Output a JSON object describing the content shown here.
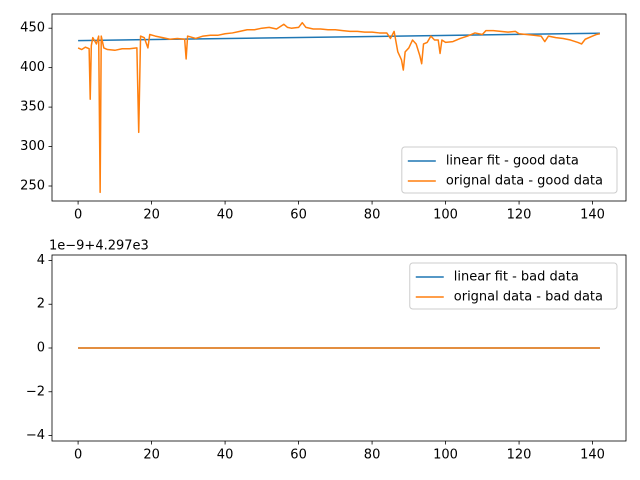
{
  "chart_data": [
    {
      "type": "line",
      "legend": "lower right",
      "xlim": [
        -7.1,
        149.1
      ],
      "xticks": [
        0,
        20,
        40,
        60,
        80,
        100,
        120,
        140
      ],
      "ylim": [
        231,
        468
      ],
      "yticks": [
        250,
        300,
        350,
        400,
        450
      ],
      "series": [
        {
          "name": "linear fit - good data",
          "color": "#1f77b4",
          "x": [
            0,
            142
          ],
          "values": [
            434.3,
            443.6
          ]
        },
        {
          "name": "orignal data - good data",
          "color": "#ff7f0e",
          "x": [
            0,
            1,
            2,
            3,
            3.3,
            3.6,
            4,
            5,
            5.6,
            6,
            6.3,
            7,
            8,
            10,
            12,
            14,
            16,
            16.5,
            17,
            18,
            19,
            19.5,
            21,
            23,
            25,
            27,
            29,
            29.4,
            29.8,
            32,
            34,
            36,
            38,
            40,
            42,
            44,
            46,
            48,
            50,
            52,
            54,
            56,
            57,
            58,
            60,
            61,
            62,
            64,
            66,
            68,
            70,
            72,
            74,
            76,
            78,
            80,
            82,
            84,
            85,
            86,
            87,
            88,
            88.5,
            89,
            90,
            91,
            92,
            93,
            93.5,
            94,
            95,
            96,
            97,
            98,
            98.5,
            99,
            100,
            102,
            104,
            106,
            108,
            110,
            111,
            113,
            115,
            117,
            119,
            120,
            122,
            124,
            126,
            127,
            128,
            130,
            132,
            134,
            136,
            137,
            138,
            140,
            141,
            142
          ],
          "values": [
            425,
            423,
            426,
            424,
            360,
            428,
            438,
            430,
            440,
            242,
            440,
            425,
            423,
            422,
            424,
            424,
            425,
            318,
            440,
            438,
            425,
            442,
            440,
            438,
            436,
            437,
            436,
            411,
            440,
            437,
            440,
            441,
            441,
            443,
            444,
            446,
            448,
            448,
            450,
            451,
            449,
            455,
            451,
            450,
            451,
            457,
            451,
            449,
            449,
            448,
            448,
            447,
            446,
            446,
            445,
            445,
            444,
            444,
            437,
            446,
            420,
            410,
            397,
            420,
            425,
            435,
            430,
            415,
            405,
            430,
            432,
            440,
            435,
            435,
            418,
            435,
            432,
            433,
            437,
            440,
            444,
            442,
            447,
            447,
            446,
            445,
            446,
            443,
            442,
            441,
            440,
            433,
            440,
            438,
            437,
            435,
            432,
            430,
            436,
            440,
            442,
            443
          ]
        }
      ]
    },
    {
      "type": "line",
      "legend": "upper right",
      "offset_text": "1e−9+4.297e3",
      "xlim": [
        -7.1,
        149.1
      ],
      "xticks": [
        0,
        20,
        40,
        60,
        80,
        100,
        120,
        140
      ],
      "ylim": [
        -4.25,
        4.25
      ],
      "yticks": [
        {
          "value": -4,
          "label": "−4"
        },
        {
          "value": -2,
          "label": "−2"
        },
        0,
        2,
        4
      ],
      "series": [
        {
          "name": "linear fit - bad data",
          "color": "#1f77b4",
          "x": [
            0,
            142
          ],
          "values": [
            0,
            0
          ]
        },
        {
          "name": "orignal data - bad data",
          "color": "#ff7f0e",
          "x": [
            0,
            142
          ],
          "values": [
            0,
            0
          ]
        }
      ]
    }
  ]
}
